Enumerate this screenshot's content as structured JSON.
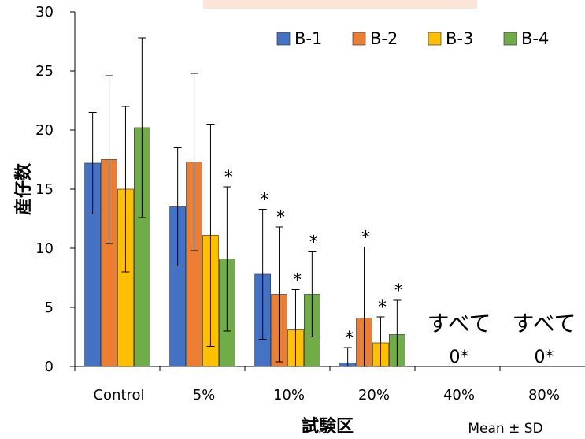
{
  "chart_data": {
    "type": "bar",
    "title": "",
    "xlabel": "試験区",
    "ylabel": "産仔数",
    "ylim": [
      0,
      30
    ],
    "yticks": [
      "0",
      "5",
      "10",
      "15",
      "20",
      "25",
      "30"
    ],
    "categories": [
      "Control",
      "5%",
      "10%",
      "20%",
      "40%",
      "80%"
    ],
    "grid": false,
    "legend_position": "top-right",
    "series": [
      {
        "name": "B-1",
        "color": "#4472C4",
        "values": [
          17.2,
          13.5,
          7.8,
          0.3,
          null,
          null
        ],
        "sd": [
          4.3,
          5.0,
          5.5,
          1.3,
          null,
          null
        ],
        "sig": [
          "",
          "",
          "*",
          "*",
          "",
          ""
        ]
      },
      {
        "name": "B-2",
        "color": "#ED7D31",
        "values": [
          17.5,
          17.3,
          6.1,
          4.1,
          null,
          null
        ],
        "sd": [
          7.1,
          7.5,
          5.7,
          6.0,
          null,
          null
        ],
        "sig": [
          "",
          "",
          "*",
          "*",
          "",
          ""
        ]
      },
      {
        "name": "B-3",
        "color": "#FFC000",
        "values": [
          15.0,
          11.1,
          3.1,
          2.0,
          null,
          null
        ],
        "sd": [
          7.0,
          9.4,
          3.4,
          2.2,
          null,
          null
        ],
        "sig": [
          "",
          "",
          "*",
          "*",
          "",
          ""
        ]
      },
      {
        "name": "B-4",
        "color": "#70AD47",
        "values": [
          20.2,
          9.1,
          6.1,
          2.7,
          null,
          null
        ],
        "sd": [
          7.6,
          6.1,
          3.6,
          2.9,
          null,
          null
        ],
        "sig": [
          "",
          "*",
          "*",
          "*",
          "",
          ""
        ]
      }
    ],
    "annotations": [
      {
        "category": "40%",
        "line1": "すべて",
        "line2": "0*"
      },
      {
        "category": "80%",
        "line1": "すべて",
        "line2": "0*"
      }
    ],
    "note": "Mean ± SD"
  }
}
